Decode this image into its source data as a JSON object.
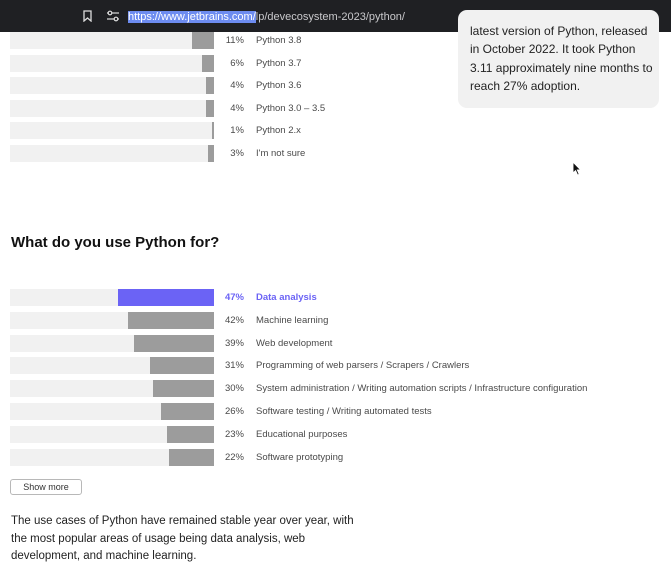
{
  "browser": {
    "url_selected": "https://www.jetbrains.com/",
    "url_rest": "lp/devecosystem-2023/python/"
  },
  "versions": [
    {
      "pct": "11%",
      "label": "Python 3.8",
      "value": 11
    },
    {
      "pct": "6%",
      "label": "Python 3.7",
      "value": 6
    },
    {
      "pct": "4%",
      "label": "Python 3.6",
      "value": 4
    },
    {
      "pct": "4%",
      "label": "Python 3.0 – 3.5",
      "value": 4
    },
    {
      "pct": "1%",
      "label": "Python 2.x",
      "value": 1
    },
    {
      "pct": "3%",
      "label": "I'm not sure",
      "value": 3
    }
  ],
  "callout": {
    "text": "latest version of Python, released in October 2022. It took Python 3.11 approximately nine months to reach 27% adoption."
  },
  "uses": {
    "title": "What do you use Python for?",
    "rows": [
      {
        "pct": "47%",
        "label": "Data analysis",
        "value": 47,
        "highlight": true
      },
      {
        "pct": "42%",
        "label": "Machine learning",
        "value": 42
      },
      {
        "pct": "39%",
        "label": "Web development",
        "value": 39
      },
      {
        "pct": "31%",
        "label": "Programming of web parsers / Scrapers / Crawlers",
        "value": 31
      },
      {
        "pct": "30%",
        "label": "System administration / Writing automation scripts / Infrastructure configuration",
        "value": 30
      },
      {
        "pct": "26%",
        "label": "Software testing / Writing automated tests",
        "value": 26
      },
      {
        "pct": "23%",
        "label": "Educational purposes",
        "value": 23
      },
      {
        "pct": "22%",
        "label": "Software prototyping",
        "value": 22
      }
    ],
    "show_more_label": "Show more",
    "summary": "The use cases of Python have remained stable year over year, with the most popular areas of usage being data analysis, web development, and machine learning."
  },
  "colors": {
    "highlight": "#6b63f5",
    "bar": "#9c9c9c",
    "track": "#f1f1f1"
  },
  "icons": [
    "bookmark-icon",
    "site-settings-icon",
    "cursor-icon"
  ]
}
